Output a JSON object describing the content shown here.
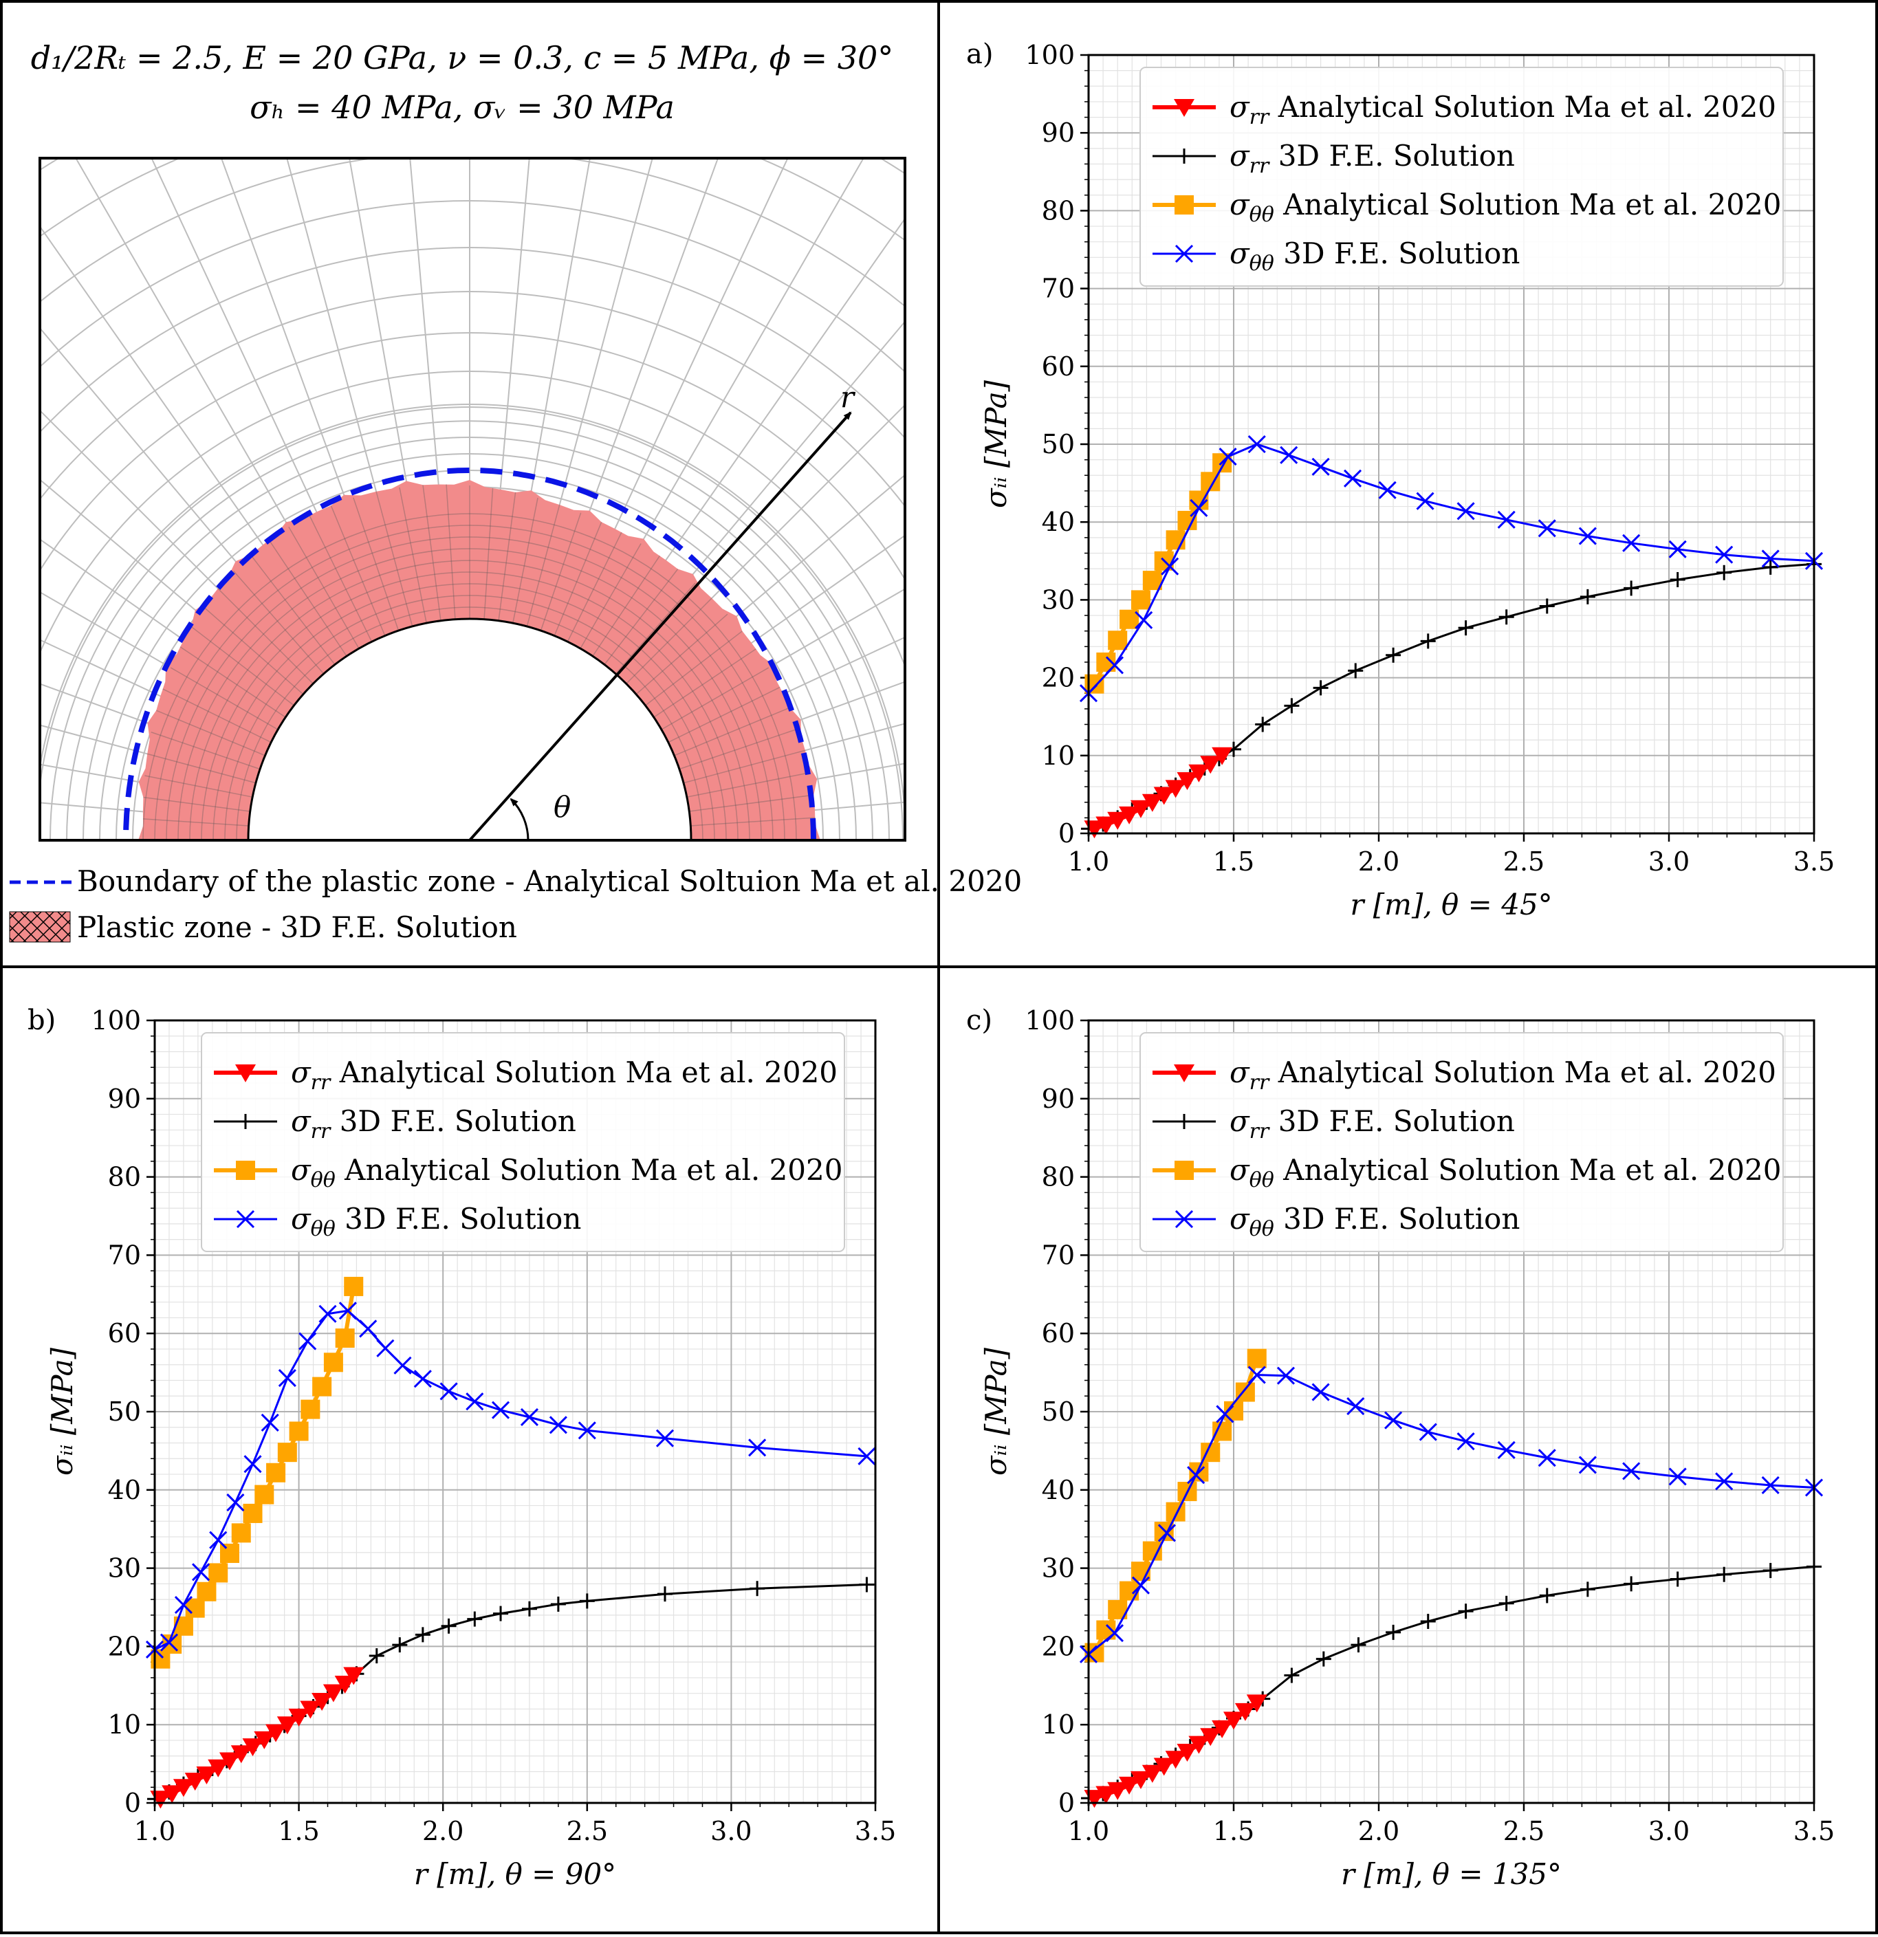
{
  "figure": {
    "header_line1": "d₁/2Rₜ = 2.5, E = 20 GPa, ν = 0.3, c = 5 MPa, ϕ = 30°",
    "header_line2": "σₕ = 40 MPa, σᵥ = 30 MPa",
    "r_label": "r",
    "theta_label": "θ",
    "legend_boundary": "Boundary of the plastic zone - Analytical Soltuion Ma et al. 2020",
    "legend_plastic": "Plastic zone - 3D F.E. Solution",
    "colors": {
      "plastic_fill": "#f28b8b",
      "boundary": "#0a14e6",
      "mesh": "#bdbdbd"
    }
  },
  "legend": {
    "srr_an_sym": "σ",
    "srr_an_sub": "rr",
    "srr_an_text": " Analytical Solution Ma et al. 2020",
    "srr_fe_sym": "σ",
    "srr_fe_sub": "rr",
    "srr_fe_text": " 3D F.E. Solution",
    "stt_an_sym": "σ",
    "stt_an_sub": "θθ",
    "stt_an_text": " Analytical Solution Ma et al. 2020",
    "stt_fe_sym": "σ",
    "stt_fe_sub": "θθ",
    "stt_fe_text": " 3D F.E. Solution"
  },
  "chart_data": [
    {
      "type": "line",
      "panel": "a)",
      "xlabel": "r [m], θ = 45°",
      "ylabel": "σᵢᵢ [MPa]",
      "xlim": [
        1.0,
        3.5
      ],
      "ylim": [
        0,
        100
      ],
      "xticks": [
        "1.0",
        "1.5",
        "2.0",
        "2.5",
        "3.0",
        "3.5"
      ],
      "yticks": [
        "0",
        "10",
        "20",
        "30",
        "40",
        "50",
        "60",
        "70",
        "80",
        "90",
        "100"
      ],
      "grid": true,
      "legend_position": "top-left",
      "series": [
        {
          "key": "srr_fe",
          "color": "#000000",
          "marker": "plus",
          "x": [
            1.0,
            1.05,
            1.1,
            1.15,
            1.2,
            1.25,
            1.3,
            1.35,
            1.4,
            1.45,
            1.5,
            1.6,
            1.7,
            1.8,
            1.92,
            2.05,
            2.17,
            2.3,
            2.44,
            2.58,
            2.72,
            2.87,
            3.03,
            3.19,
            3.35,
            3.5
          ],
          "y": [
            0.6,
            1.2,
            2.0,
            3.0,
            4.0,
            5.1,
            6.2,
            7.3,
            8.4,
            9.6,
            10.8,
            14.0,
            16.4,
            18.7,
            20.9,
            22.9,
            24.7,
            26.4,
            27.8,
            29.2,
            30.4,
            31.5,
            32.6,
            33.5,
            34.2,
            34.6
          ]
        },
        {
          "key": "srr_an",
          "color": "#ff0000",
          "marker": "triangle",
          "x": [
            1.02,
            1.06,
            1.1,
            1.14,
            1.18,
            1.22,
            1.26,
            1.3,
            1.34,
            1.38,
            1.42,
            1.46
          ],
          "y": [
            0.6,
            1.1,
            1.7,
            2.4,
            3.2,
            4.0,
            4.9,
            5.8,
            6.8,
            7.8,
            8.9,
            10.0
          ]
        },
        {
          "key": "stt_an",
          "color": "#ffa500",
          "marker": "square",
          "x": [
            1.02,
            1.06,
            1.1,
            1.14,
            1.18,
            1.22,
            1.26,
            1.3,
            1.34,
            1.38,
            1.42,
            1.46
          ],
          "y": [
            19.2,
            22.0,
            24.8,
            27.5,
            30.0,
            32.5,
            35.0,
            37.7,
            40.2,
            42.8,
            45.2,
            47.6
          ]
        },
        {
          "key": "stt_fe",
          "color": "#0000ff",
          "marker": "x",
          "x": [
            1.0,
            1.09,
            1.19,
            1.28,
            1.38,
            1.48,
            1.58,
            1.69,
            1.8,
            1.91,
            2.03,
            2.16,
            2.3,
            2.44,
            2.58,
            2.72,
            2.87,
            3.03,
            3.19,
            3.35,
            3.5
          ],
          "y": [
            18.0,
            21.6,
            27.4,
            34.3,
            41.8,
            48.4,
            50.0,
            48.6,
            47.1,
            45.6,
            44.1,
            42.7,
            41.4,
            40.3,
            39.2,
            38.2,
            37.3,
            36.5,
            35.8,
            35.3,
            35.0
          ]
        }
      ]
    },
    {
      "type": "line",
      "panel": "b)",
      "xlabel": "r [m], θ = 90°",
      "ylabel": "σᵢᵢ [MPa]",
      "xlim": [
        1.0,
        3.5
      ],
      "ylim": [
        0,
        100
      ],
      "xticks": [
        "1.0",
        "1.5",
        "2.0",
        "2.5",
        "3.0",
        "3.5"
      ],
      "yticks": [
        "0",
        "10",
        "20",
        "30",
        "40",
        "50",
        "60",
        "70",
        "80",
        "90",
        "100"
      ],
      "grid": true,
      "legend_position": "top-right",
      "series": [
        {
          "key": "srr_fe",
          "color": "#000000",
          "marker": "plus",
          "x": [
            1.0,
            1.05,
            1.1,
            1.15,
            1.2,
            1.25,
            1.3,
            1.35,
            1.4,
            1.45,
            1.5,
            1.55,
            1.6,
            1.65,
            1.7,
            1.77,
            1.85,
            1.93,
            2.02,
            2.11,
            2.2,
            2.3,
            2.4,
            2.5,
            2.77,
            3.09,
            3.47
          ],
          "y": [
            0.5,
            1.4,
            2.4,
            3.4,
            4.4,
            5.4,
            6.5,
            7.6,
            8.7,
            9.9,
            11.1,
            12.3,
            13.6,
            14.9,
            16.5,
            18.8,
            20.2,
            21.5,
            22.6,
            23.5,
            24.2,
            24.8,
            25.4,
            25.8,
            26.7,
            27.4,
            27.9
          ]
        },
        {
          "key": "srr_an",
          "color": "#ff0000",
          "marker": "triangle",
          "x": [
            1.02,
            1.06,
            1.1,
            1.14,
            1.18,
            1.22,
            1.26,
            1.3,
            1.34,
            1.38,
            1.42,
            1.46,
            1.5,
            1.54,
            1.58,
            1.62,
            1.66,
            1.69
          ],
          "y": [
            0.5,
            1.2,
            2.0,
            2.8,
            3.6,
            4.5,
            5.4,
            6.3,
            7.2,
            8.1,
            9.0,
            10.0,
            11.0,
            12.0,
            13.0,
            14.1,
            15.2,
            16.3
          ]
        },
        {
          "key": "stt_an",
          "color": "#ffa500",
          "marker": "square",
          "x": [
            1.02,
            1.06,
            1.1,
            1.14,
            1.18,
            1.22,
            1.26,
            1.3,
            1.34,
            1.38,
            1.42,
            1.46,
            1.5,
            1.54,
            1.58,
            1.62,
            1.66,
            1.69
          ],
          "y": [
            18.4,
            20.3,
            22.6,
            24.9,
            27.0,
            29.4,
            31.9,
            34.5,
            37.0,
            39.4,
            42.2,
            44.8,
            47.5,
            50.3,
            53.2,
            56.3,
            59.4,
            66.0
          ]
        },
        {
          "key": "stt_fe",
          "color": "#0000ff",
          "marker": "x",
          "x": [
            1.0,
            1.05,
            1.1,
            1.16,
            1.22,
            1.28,
            1.34,
            1.4,
            1.46,
            1.53,
            1.6,
            1.67,
            1.74,
            1.8,
            1.86,
            1.93,
            2.02,
            2.11,
            2.2,
            2.3,
            2.4,
            2.5,
            2.77,
            3.09,
            3.47
          ],
          "y": [
            19.6,
            20.5,
            25.3,
            29.5,
            33.6,
            38.4,
            43.3,
            48.6,
            54.3,
            59.0,
            62.5,
            62.9,
            60.6,
            58.1,
            55.9,
            54.2,
            52.6,
            51.3,
            50.2,
            49.3,
            48.3,
            47.6,
            46.6,
            45.4,
            44.3
          ]
        }
      ]
    },
    {
      "type": "line",
      "panel": "c)",
      "xlabel": "r [m], θ = 135°",
      "ylabel": "σᵢᵢ [MPa]",
      "xlim": [
        1.0,
        3.5
      ],
      "ylim": [
        0,
        100
      ],
      "xticks": [
        "1.0",
        "1.5",
        "2.0",
        "2.5",
        "3.0",
        "3.5"
      ],
      "yticks": [
        "0",
        "10",
        "20",
        "30",
        "40",
        "50",
        "60",
        "70",
        "80",
        "90",
        "100"
      ],
      "grid": true,
      "legend_position": "top-left",
      "series": [
        {
          "key": "srr_fe",
          "color": "#000000",
          "marker": "plus",
          "x": [
            1.0,
            1.05,
            1.1,
            1.15,
            1.2,
            1.25,
            1.3,
            1.35,
            1.4,
            1.45,
            1.5,
            1.55,
            1.6,
            1.7,
            1.81,
            1.93,
            2.05,
            2.17,
            2.3,
            2.44,
            2.58,
            2.72,
            2.87,
            3.03,
            3.19,
            3.35,
            3.5
          ],
          "y": [
            0.6,
            1.2,
            2.0,
            2.9,
            3.9,
            5.0,
            6.1,
            7.2,
            8.4,
            9.6,
            10.8,
            12.0,
            13.3,
            16.3,
            18.4,
            20.2,
            21.8,
            23.2,
            24.5,
            25.5,
            26.5,
            27.3,
            28.0,
            28.6,
            29.2,
            29.7,
            30.2
          ]
        },
        {
          "key": "srr_an",
          "color": "#ff0000",
          "marker": "triangle",
          "x": [
            1.02,
            1.06,
            1.1,
            1.14,
            1.18,
            1.22,
            1.26,
            1.3,
            1.34,
            1.38,
            1.42,
            1.46,
            1.5,
            1.54,
            1.58
          ],
          "y": [
            0.6,
            1.1,
            1.6,
            2.3,
            3.0,
            3.8,
            4.7,
            5.6,
            6.5,
            7.5,
            8.5,
            9.5,
            10.6,
            11.7,
            12.8
          ]
        },
        {
          "key": "stt_an",
          "color": "#ffa500",
          "marker": "square",
          "x": [
            1.02,
            1.06,
            1.1,
            1.14,
            1.18,
            1.22,
            1.26,
            1.3,
            1.34,
            1.38,
            1.42,
            1.46,
            1.5,
            1.54,
            1.58
          ],
          "y": [
            19.2,
            22.1,
            24.7,
            27.1,
            29.6,
            32.2,
            34.7,
            37.2,
            39.8,
            42.3,
            44.8,
            47.5,
            50.1,
            52.5,
            56.8
          ]
        },
        {
          "key": "stt_fe",
          "color": "#0000ff",
          "marker": "x",
          "x": [
            1.0,
            1.09,
            1.18,
            1.27,
            1.37,
            1.47,
            1.58,
            1.68,
            1.8,
            1.92,
            2.05,
            2.17,
            2.3,
            2.44,
            2.58,
            2.72,
            2.87,
            3.03,
            3.19,
            3.35,
            3.5
          ],
          "y": [
            19.0,
            21.7,
            27.8,
            34.5,
            41.9,
            49.7,
            54.7,
            54.6,
            52.5,
            50.7,
            48.9,
            47.4,
            46.2,
            45.1,
            44.1,
            43.2,
            42.4,
            41.7,
            41.1,
            40.6,
            40.3
          ]
        }
      ]
    }
  ]
}
